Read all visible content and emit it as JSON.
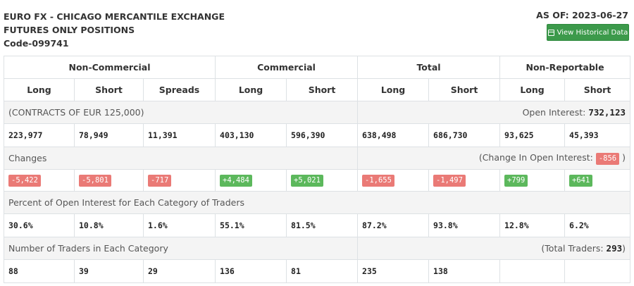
{
  "header": {
    "title_line1": "EURO FX - CHICAGO MERCANTILE EXCHANGE",
    "title_line2": "FUTURES ONLY POSITIONS",
    "title_line3": "Code-099741",
    "as_of": "AS OF: 2023-06-27",
    "hist_button": "View Historical Data"
  },
  "groups": [
    "Non-Commercial",
    "Commercial",
    "Total",
    "Non-Reportable"
  ],
  "subheaders": [
    "Long",
    "Short",
    "Spreads",
    "Long",
    "Short",
    "Long",
    "Short",
    "Long",
    "Short"
  ],
  "contracts": {
    "label": "(CONTRACTS OF EUR 125,000)",
    "oi_label": "Open Interest:",
    "oi_value": "732,123"
  },
  "positions": [
    "223,977",
    "78,949",
    "11,391",
    "403,130",
    "596,390",
    "638,498",
    "686,730",
    "93,625",
    "45,393"
  ],
  "changes": {
    "label": "Changes",
    "oi_label_pre": "(Change In Open Interest:",
    "oi_value": "-856",
    "oi_label_post": ")",
    "values": [
      "-5,422",
      "-5,801",
      "-717",
      "+4,484",
      "+5,021",
      "-1,655",
      "-1,497",
      "+799",
      "+641"
    ],
    "signs": [
      "neg",
      "neg",
      "neg",
      "pos",
      "pos",
      "neg",
      "neg",
      "pos",
      "pos"
    ]
  },
  "percent": {
    "label": "Percent of Open Interest for Each Category of Traders",
    "values": [
      "30.6%",
      "10.8%",
      "1.6%",
      "55.1%",
      "81.5%",
      "87.2%",
      "93.8%",
      "12.8%",
      "6.2%"
    ]
  },
  "traders": {
    "label": "Number of Traders in Each Category",
    "total_pre": "(Total Traders:",
    "total_value": "293",
    "total_post": ")",
    "values": [
      "88",
      "39",
      "29",
      "136",
      "81",
      "235",
      "138",
      "",
      ""
    ]
  },
  "colors": {
    "button": "#3c9a4b",
    "negative": "#ea7a76",
    "positive": "#5cb85c"
  }
}
